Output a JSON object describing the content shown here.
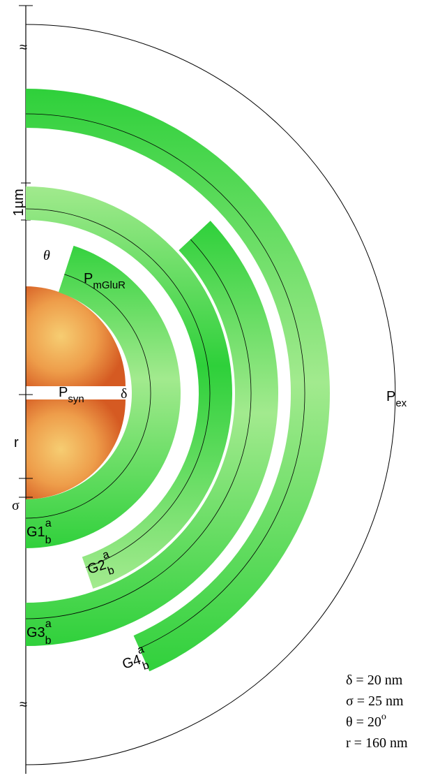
{
  "labels": {
    "theta": "θ",
    "p_mglur": {
      "main": "P",
      "sub": "mGluR"
    },
    "p_syn": {
      "main": "P",
      "sub": "syn"
    },
    "delta": "δ",
    "p_ex": {
      "main": "P",
      "sub": "ex"
    }
  },
  "groups": [
    {
      "label": "G1",
      "sup": "a",
      "sub": "b"
    },
    {
      "label": "G2",
      "sup": "a",
      "sub": "b"
    },
    {
      "label": "G3",
      "sup": "a",
      "sub": "b"
    },
    {
      "label": "G4",
      "sup": "a",
      "sub": "b"
    }
  ],
  "axis": {
    "scale": "1µm",
    "r": "r",
    "sigma": "σ",
    "breaks": [
      "≈",
      "≈"
    ]
  },
  "parameters": [
    {
      "text": "δ = 20 nm"
    },
    {
      "text": "σ = 25 nm"
    },
    {
      "text": "θ = 20",
      "sup": "o"
    },
    {
      "text": "r = 160 nm"
    }
  ]
}
